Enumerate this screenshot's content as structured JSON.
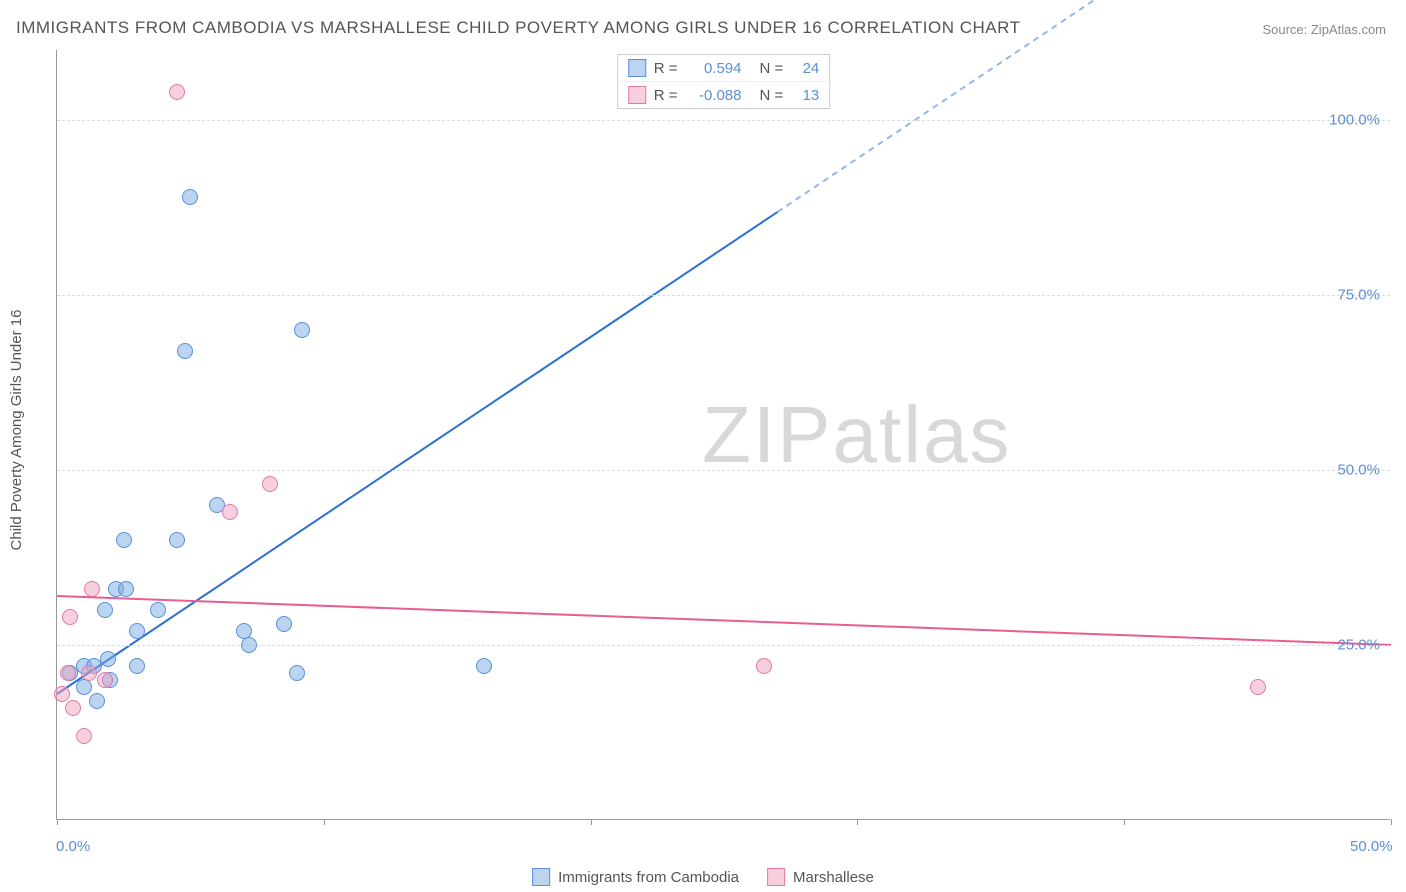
{
  "title": "IMMIGRANTS FROM CAMBODIA VS MARSHALLESE CHILD POVERTY AMONG GIRLS UNDER 16 CORRELATION CHART",
  "source": "Source: ZipAtlas.com",
  "y_axis_label": "Child Poverty Among Girls Under 16",
  "watermark": "ZIPatlas",
  "chart": {
    "type": "scatter",
    "xlim": [
      0,
      50
    ],
    "ylim": [
      0,
      110
    ],
    "x_ticks": [
      0,
      10,
      20,
      30,
      40,
      50
    ],
    "x_tick_labels": {
      "0": "0.0%",
      "50": "50.0%"
    },
    "y_gridlines": [
      25,
      50,
      75,
      100
    ],
    "y_tick_labels": {
      "25": "25.0%",
      "50": "50.0%",
      "75": "75.0%",
      "100": "100.0%"
    },
    "background_color": "#ffffff",
    "grid_color": "#dddddd",
    "axis_color": "#999999",
    "series": [
      {
        "name": "Immigrants from Cambodia",
        "color_fill": "rgba(120,170,230,0.5)",
        "color_stroke": "#5b8fd6",
        "correlation_R": 0.594,
        "N": 24,
        "trend": {
          "slope": 2.55,
          "intercept": 18,
          "extend_dashed_after_x": 27,
          "line_color": "#2b6fd4",
          "line_width": 2
        },
        "points": [
          {
            "x": 0.5,
            "y": 21
          },
          {
            "x": 1.0,
            "y": 22
          },
          {
            "x": 1.0,
            "y": 19
          },
          {
            "x": 1.4,
            "y": 22
          },
          {
            "x": 1.5,
            "y": 17
          },
          {
            "x": 1.8,
            "y": 30
          },
          {
            "x": 1.9,
            "y": 23
          },
          {
            "x": 2.0,
            "y": 20
          },
          {
            "x": 2.2,
            "y": 33
          },
          {
            "x": 2.5,
            "y": 40
          },
          {
            "x": 2.6,
            "y": 33
          },
          {
            "x": 3.0,
            "y": 27
          },
          {
            "x": 3.0,
            "y": 22
          },
          {
            "x": 3.8,
            "y": 30
          },
          {
            "x": 4.5,
            "y": 40
          },
          {
            "x": 4.8,
            "y": 67
          },
          {
            "x": 5.0,
            "y": 89
          },
          {
            "x": 6.0,
            "y": 45
          },
          {
            "x": 7.0,
            "y": 27
          },
          {
            "x": 7.2,
            "y": 25
          },
          {
            "x": 8.5,
            "y": 28
          },
          {
            "x": 9.0,
            "y": 21
          },
          {
            "x": 9.2,
            "y": 70
          },
          {
            "x": 16.0,
            "y": 22
          }
        ]
      },
      {
        "name": "Marshallese",
        "color_fill": "rgba(240,160,190,0.5)",
        "color_stroke": "#e07ba5",
        "correlation_R": -0.088,
        "N": 13,
        "trend": {
          "slope": -0.14,
          "intercept": 32,
          "line_color": "#e85d92",
          "line_width": 2
        },
        "points": [
          {
            "x": 0.2,
            "y": 18
          },
          {
            "x": 0.4,
            "y": 21
          },
          {
            "x": 0.5,
            "y": 29
          },
          {
            "x": 0.6,
            "y": 16
          },
          {
            "x": 1.0,
            "y": 12
          },
          {
            "x": 1.2,
            "y": 21
          },
          {
            "x": 1.3,
            "y": 33
          },
          {
            "x": 1.8,
            "y": 20
          },
          {
            "x": 4.5,
            "y": 104
          },
          {
            "x": 6.5,
            "y": 44
          },
          {
            "x": 8.0,
            "y": 48
          },
          {
            "x": 26.5,
            "y": 22
          },
          {
            "x": 45.0,
            "y": 19
          }
        ]
      }
    ],
    "legend_top": {
      "R_label": "R =",
      "N_label": "N ="
    },
    "legend_bottom_labels": [
      "Immigrants from Cambodia",
      "Marshallese"
    ]
  }
}
